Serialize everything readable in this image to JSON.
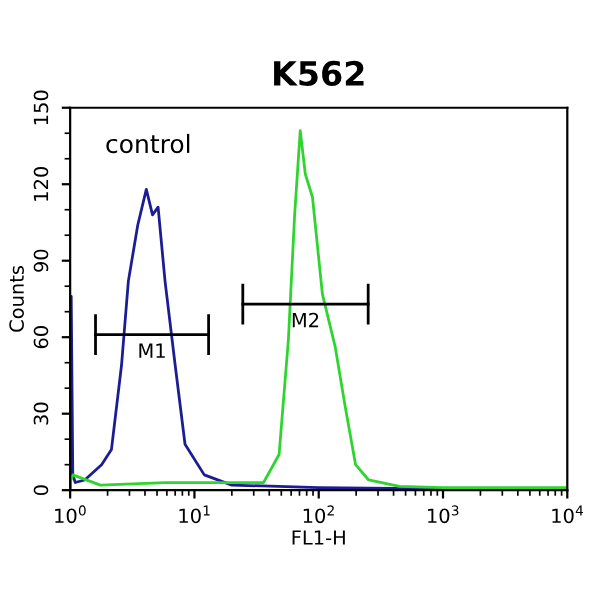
{
  "chart_data": {
    "type": "line",
    "title": "K562",
    "xlabel": "FL1-H",
    "ylabel": "Counts",
    "log": "x",
    "grid": false,
    "xlim": [
      1,
      10000
    ],
    "xticks": [
      {
        "value": 1,
        "label": "10$^{0}$"
      },
      {
        "value": 10,
        "label": "10$^{1}$"
      },
      {
        "value": 100,
        "label": "10$^{2}$"
      },
      {
        "value": 1000,
        "label": "10$^{3}$"
      },
      {
        "value": 10000,
        "label": "10$^{4}$"
      }
    ],
    "ylim": [
      0,
      150
    ],
    "yticks": [
      0,
      30,
      60,
      90,
      120,
      150
    ],
    "series": [
      {
        "color": "#1c1c94",
        "x": [
          1,
          1.02,
          1.05,
          1.1,
          1.31,
          1.79,
          2.15,
          2.59,
          2.94,
          3.5,
          4.1,
          4.6,
          5.1,
          5.8,
          7.0,
          8.4,
          12,
          20,
          100,
          1000,
          10000
        ],
        "values": [
          0,
          76,
          6,
          3,
          4,
          10,
          16,
          49,
          82,
          104,
          118,
          108,
          111,
          82,
          49,
          18,
          6,
          2,
          1,
          0.5,
          0.5
        ]
      },
      {
        "color": "#2fd42f",
        "x": [
          1,
          1.05,
          1.75,
          5.8,
          36,
          48,
          57,
          64,
          71,
          78,
          89,
          107,
          136,
          163,
          198,
          252,
          445,
          1000,
          10000
        ],
        "values": [
          3,
          6,
          2,
          3,
          3,
          14,
          59,
          108,
          141,
          124,
          115,
          77,
          56,
          33,
          10,
          4,
          1.5,
          1,
          1
        ]
      },
      {
        "color": "#000000",
        "x": [
          1.6,
          13
        ],
        "values": [
          61,
          61
        ],
        "errors": [
          8,
          8
        ]
      },
      {
        "color": "#000000",
        "x": [
          24.5,
          250
        ],
        "values": [
          73,
          73
        ],
        "errors": [
          8,
          8
        ]
      }
    ],
    "annotations": [
      "control",
      "M1",
      "M2"
    ]
  }
}
